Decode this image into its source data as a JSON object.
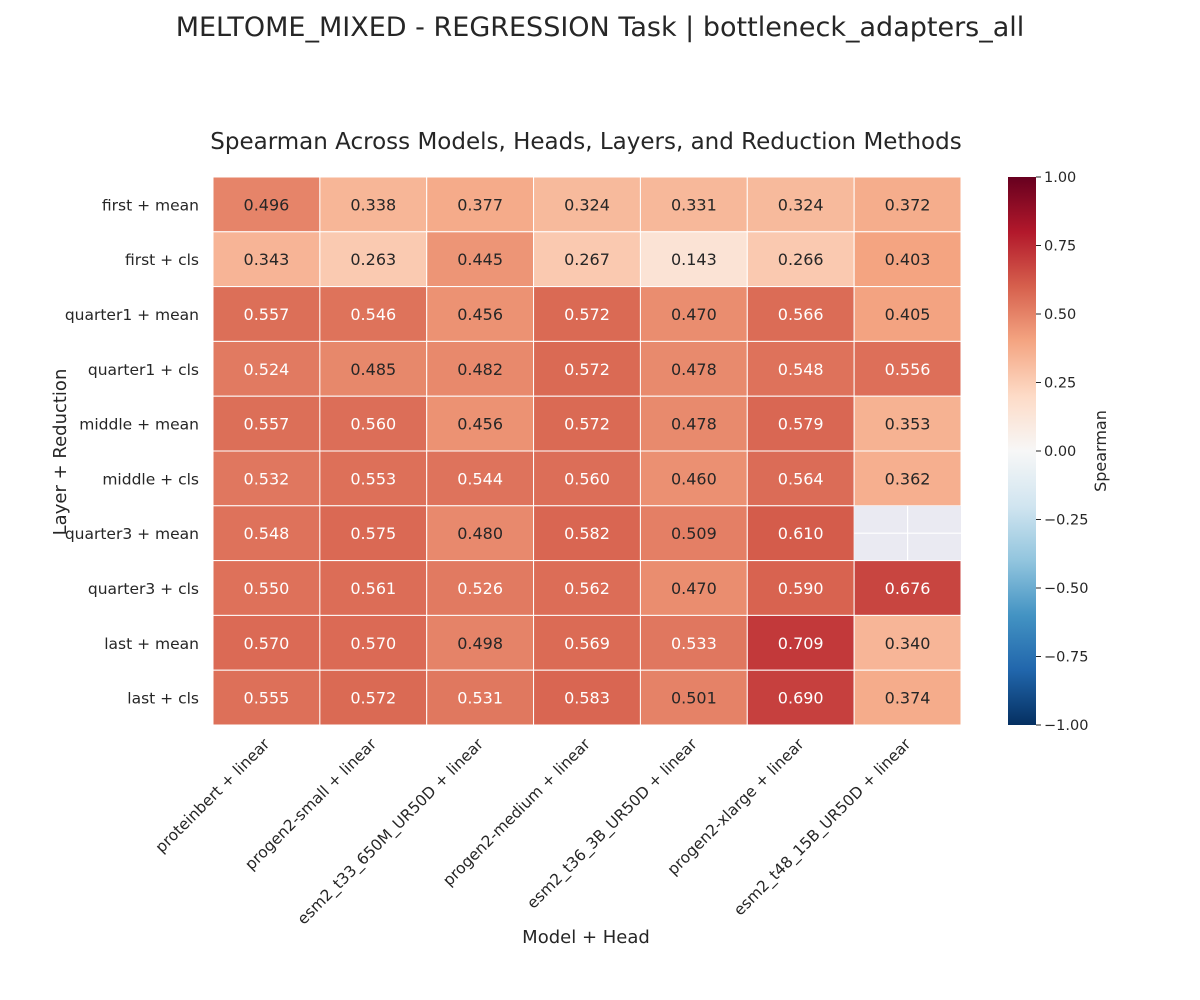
{
  "figure": {
    "suptitle": "MELTOME_MIXED - REGRESSION Task | bottleneck_adapters_all"
  },
  "chart_data": {
    "type": "heatmap",
    "title": "Spearman Across Models, Heads, Layers, and Reduction Methods",
    "xlabel": "Model + Head",
    "ylabel": "Layer + Reduction",
    "x_categories": [
      "proteinbert + linear",
      "progen2-small + linear",
      "esm2_t33_650M_UR50D + linear",
      "progen2-medium + linear",
      "esm2_t36_3B_UR50D + linear",
      "progen2-xlarge + linear",
      "esm2_t48_15B_UR50D + linear"
    ],
    "y_categories": [
      "first + mean",
      "first + cls",
      "quarter1 + mean",
      "quarter1 + cls",
      "middle + mean",
      "middle + cls",
      "quarter3 + mean",
      "quarter3 + cls",
      "last + mean",
      "last + cls"
    ],
    "values": [
      [
        0.496,
        0.338,
        0.377,
        0.324,
        0.331,
        0.324,
        0.372
      ],
      [
        0.343,
        0.263,
        0.445,
        0.267,
        0.143,
        0.266,
        0.403
      ],
      [
        0.557,
        0.546,
        0.456,
        0.572,
        0.47,
        0.566,
        0.405
      ],
      [
        0.524,
        0.485,
        0.482,
        0.572,
        0.478,
        0.548,
        0.556
      ],
      [
        0.557,
        0.56,
        0.456,
        0.572,
        0.478,
        0.579,
        0.353
      ],
      [
        0.532,
        0.553,
        0.544,
        0.56,
        0.46,
        0.564,
        0.362
      ],
      [
        0.548,
        0.575,
        0.48,
        0.582,
        0.509,
        0.61,
        null
      ],
      [
        0.55,
        0.561,
        0.526,
        0.562,
        0.47,
        0.59,
        0.676
      ],
      [
        0.57,
        0.57,
        0.498,
        0.569,
        0.533,
        0.709,
        0.34
      ],
      [
        0.555,
        0.572,
        0.531,
        0.583,
        0.501,
        0.69,
        0.374
      ]
    ],
    "value_format_decimals": 3,
    "colorbar": {
      "label": "Spearman",
      "vmin": -1.0,
      "vmax": 1.0,
      "ticks": [
        1.0,
        0.75,
        0.5,
        0.25,
        0.0,
        -0.25,
        -0.5,
        -0.75,
        -1.0
      ],
      "tick_labels": [
        "1.00",
        "0.75",
        "0.50",
        "0.25",
        "0.00",
        "−0.25",
        "−0.50",
        "−0.75",
        "−1.00"
      ],
      "colormap": "RdBu_r",
      "colormap_stops": [
        "#053061",
        "#2166ac",
        "#4393c3",
        "#92c5de",
        "#d1e5f0",
        "#f7f7f7",
        "#fddbc7",
        "#f4a582",
        "#d6604d",
        "#b2182b",
        "#67001f"
      ]
    },
    "missing_color": "#eaeaf2"
  }
}
